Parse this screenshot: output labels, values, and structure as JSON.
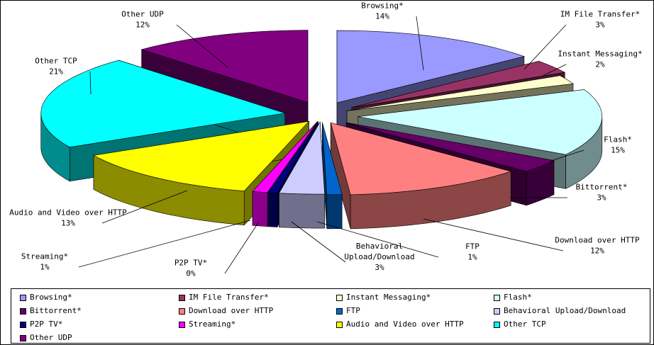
{
  "chart_data": {
    "type": "pie",
    "style": "3d-exploded",
    "legend_position": "bottom",
    "categories": [
      "Browsing*",
      "IM File Transfer*",
      "Instant Messaging*",
      "Flash*",
      "Bittorrent*",
      "Download over HTTP",
      "FTP",
      "Behavioral Upload/Download",
      "P2P TV*",
      "Streaming*",
      "Audio and Video over HTTP",
      "Other TCP",
      "Other UDP"
    ],
    "values": [
      14,
      3,
      2,
      15,
      3,
      12,
      1,
      3,
      0,
      1,
      13,
      21,
      12
    ],
    "value_labels": [
      "14%",
      "3%",
      "2%",
      "15%",
      "3%",
      "12%",
      "1%",
      "3%",
      "0%",
      "1%",
      "13%",
      "21%",
      "12%"
    ],
    "label_lines": [
      [
        "Browsing*"
      ],
      [
        "IM File Transfer*"
      ],
      [
        "Instant Messaging*"
      ],
      [
        "Flash*"
      ],
      [
        "Bittorrent*"
      ],
      [
        "Download over HTTP"
      ],
      [
        "FTP"
      ],
      [
        "Behavioral",
        "Upload/Download"
      ],
      [
        "P2P TV*"
      ],
      [
        "Streaming*"
      ],
      [
        "Audio and Video over HTTP"
      ],
      [
        "Other TCP"
      ],
      [
        "Other UDP"
      ]
    ],
    "colors": [
      "#9999ff",
      "#993366",
      "#ffffcc",
      "#ccffff",
      "#660066",
      "#ff8080",
      "#0066cc",
      "#ccccff",
      "#000080",
      "#ff00ff",
      "#ffff00",
      "#00ffff",
      "#800080"
    ]
  }
}
